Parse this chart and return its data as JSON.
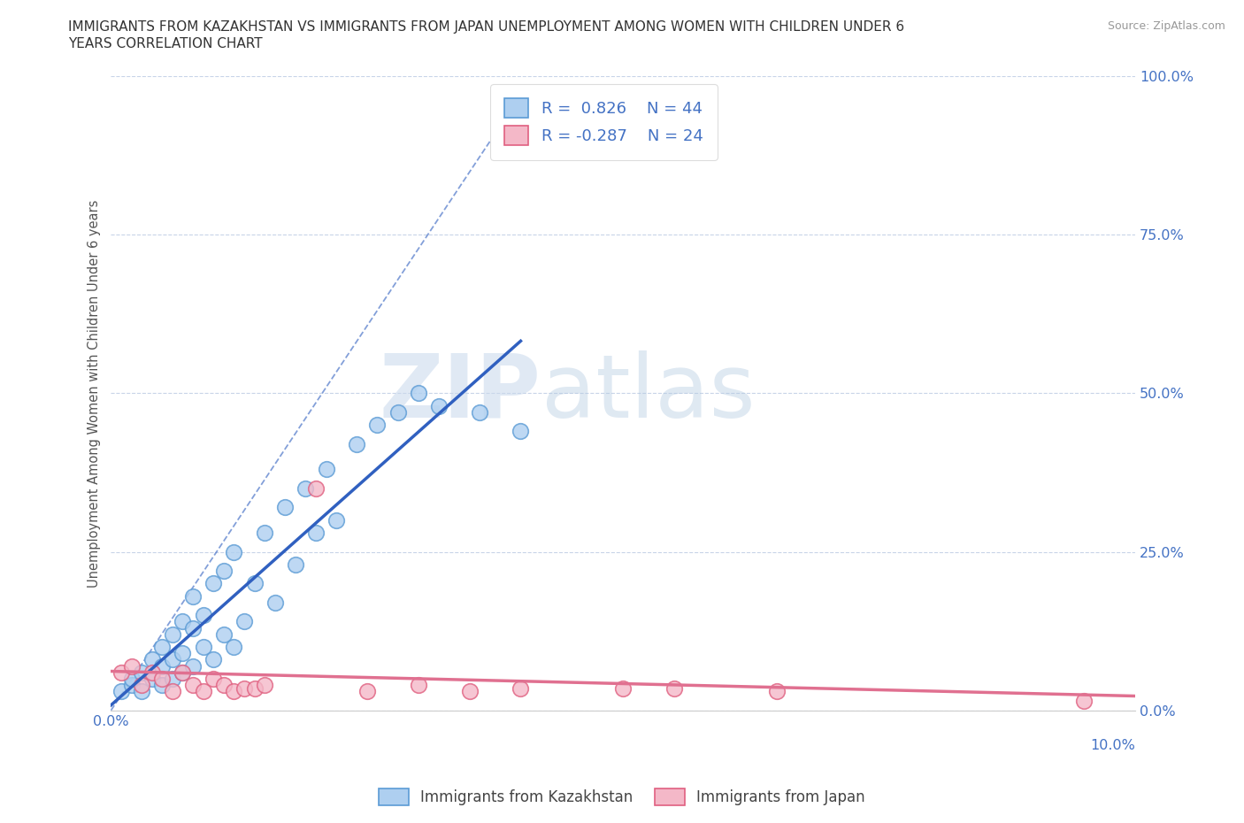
{
  "title_line1": "IMMIGRANTS FROM KAZAKHSTAN VS IMMIGRANTS FROM JAPAN UNEMPLOYMENT AMONG WOMEN WITH CHILDREN UNDER 6",
  "title_line2": "YEARS CORRELATION CHART",
  "source": "Source: ZipAtlas.com",
  "ylabel": "Unemployment Among Women with Children Under 6 years",
  "xlim": [
    0.0,
    0.1
  ],
  "ylim": [
    0.0,
    1.0
  ],
  "xtick_pos": [
    0.0
  ],
  "xtick_labels": [
    "0.0%"
  ],
  "xright_label": "10.0%",
  "yticks": [
    0.0,
    0.25,
    0.5,
    0.75,
    1.0
  ],
  "ytick_labels": [
    "0.0%",
    "25.0%",
    "50.0%",
    "75.0%",
    "100.0%"
  ],
  "kaz_color": "#aecff0",
  "kaz_edge_color": "#5b9bd5",
  "kaz_line_color": "#3060c0",
  "jpn_color": "#f4b8c8",
  "jpn_edge_color": "#e06080",
  "jpn_line_color": "#e07090",
  "R_kaz": 0.826,
  "N_kaz": 44,
  "R_jpn": -0.287,
  "N_jpn": 24,
  "legend_kaz": "Immigrants from Kazakhstan",
  "legend_jpn": "Immigrants from Japan",
  "watermark_zip": "ZIP",
  "watermark_atlas": "atlas",
  "background_color": "#ffffff",
  "grid_color": "#c8d4e8",
  "kaz_points": [
    [
      0.001,
      0.03
    ],
    [
      0.002,
      0.04
    ],
    [
      0.002,
      0.05
    ],
    [
      0.003,
      0.03
    ],
    [
      0.003,
      0.06
    ],
    [
      0.004,
      0.08
    ],
    [
      0.004,
      0.05
    ],
    [
      0.005,
      0.04
    ],
    [
      0.005,
      0.07
    ],
    [
      0.005,
      0.1
    ],
    [
      0.006,
      0.05
    ],
    [
      0.006,
      0.08
    ],
    [
      0.006,
      0.12
    ],
    [
      0.007,
      0.06
    ],
    [
      0.007,
      0.09
    ],
    [
      0.007,
      0.14
    ],
    [
      0.008,
      0.07
    ],
    [
      0.008,
      0.13
    ],
    [
      0.008,
      0.18
    ],
    [
      0.009,
      0.1
    ],
    [
      0.009,
      0.15
    ],
    [
      0.01,
      0.08
    ],
    [
      0.01,
      0.2
    ],
    [
      0.011,
      0.12
    ],
    [
      0.011,
      0.22
    ],
    [
      0.012,
      0.1
    ],
    [
      0.012,
      0.25
    ],
    [
      0.013,
      0.14
    ],
    [
      0.014,
      0.2
    ],
    [
      0.015,
      0.28
    ],
    [
      0.016,
      0.17
    ],
    [
      0.017,
      0.32
    ],
    [
      0.018,
      0.23
    ],
    [
      0.019,
      0.35
    ],
    [
      0.02,
      0.28
    ],
    [
      0.021,
      0.38
    ],
    [
      0.022,
      0.3
    ],
    [
      0.024,
      0.42
    ],
    [
      0.026,
      0.45
    ],
    [
      0.028,
      0.47
    ],
    [
      0.03,
      0.5
    ],
    [
      0.032,
      0.48
    ],
    [
      0.036,
      0.47
    ],
    [
      0.04,
      0.44
    ]
  ],
  "jpn_points": [
    [
      0.001,
      0.06
    ],
    [
      0.002,
      0.07
    ],
    [
      0.003,
      0.04
    ],
    [
      0.004,
      0.06
    ],
    [
      0.005,
      0.05
    ],
    [
      0.006,
      0.03
    ],
    [
      0.007,
      0.06
    ],
    [
      0.008,
      0.04
    ],
    [
      0.009,
      0.03
    ],
    [
      0.01,
      0.05
    ],
    [
      0.011,
      0.04
    ],
    [
      0.012,
      0.03
    ],
    [
      0.013,
      0.035
    ],
    [
      0.014,
      0.035
    ],
    [
      0.015,
      0.04
    ],
    [
      0.02,
      0.35
    ],
    [
      0.025,
      0.03
    ],
    [
      0.03,
      0.04
    ],
    [
      0.035,
      0.03
    ],
    [
      0.04,
      0.035
    ],
    [
      0.05,
      0.035
    ],
    [
      0.055,
      0.035
    ],
    [
      0.065,
      0.03
    ],
    [
      0.095,
      0.015
    ]
  ],
  "dashed_line_x": [
    0.0,
    0.04
  ],
  "dashed_line_y": [
    0.0,
    0.97
  ]
}
